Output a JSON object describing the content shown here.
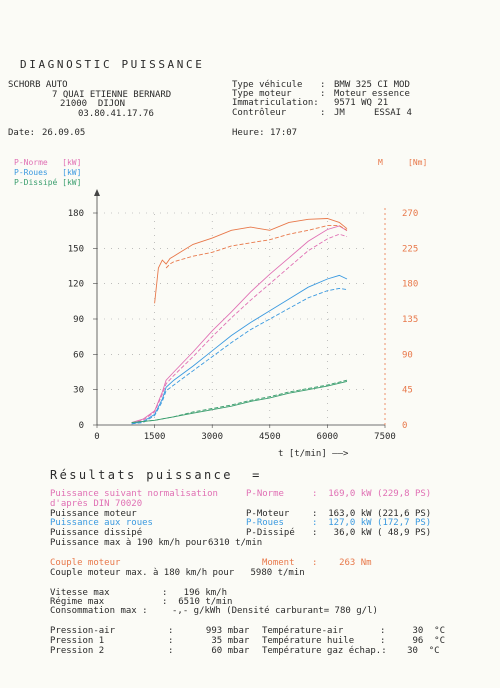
{
  "header": {
    "title": "DIAGNOSTIC PUISSANCE",
    "company": "SCHORB AUTO",
    "address1": "7 QUAI ETIENNE BERNARD",
    "address2": "21000  DIJON",
    "phone": "03.80.41.17.76",
    "labels": {
      "vehicle_type": "Type véhicule",
      "engine_type": "Type moteur",
      "registration": "Immatriculation:",
      "controller": "Contrôleur",
      "date": "Date:",
      "time": "Heure:"
    },
    "values": {
      "vehicle_type": "BMW 325 CI MOD",
      "engine_type": "Moteur essence",
      "registration": "9571 WQ 21",
      "controller": "JM",
      "test": "ESSAI 4",
      "date": "26.09.05",
      "time": "17:07"
    }
  },
  "legend": {
    "p_norme": "P-Norme   [kW]",
    "p_roues": "P-Roues   [kW]",
    "p_dissipe": "P-Dissipé [kW]",
    "m_label": "M",
    "m_unit": "[Nm]"
  },
  "chart_data": {
    "type": "line",
    "xlabel": "t [t/min] ——>",
    "x_ticks": [
      0,
      1500,
      3000,
      4500,
      6000,
      7500
    ],
    "y_left_ticks": [
      0,
      30,
      60,
      90,
      120,
      150,
      180
    ],
    "y_right_ticks": [
      0,
      45,
      90,
      135,
      180,
      225,
      270
    ],
    "xlim": [
      0,
      7500
    ],
    "ylim_left": [
      0,
      180
    ],
    "ylim_right": [
      0,
      270
    ],
    "grid": true,
    "colors": {
      "p_norme": "#e070b4",
      "p_roues": "#3b9ae0",
      "p_dissipe": "#3a9e6e",
      "torque": "#e8784a"
    },
    "series": [
      {
        "name": "P-Norme",
        "axis": "left",
        "color": "#e070b4",
        "style": "solid",
        "x": [
          900,
          1200,
          1500,
          1700,
          1800,
          2000,
          2500,
          3000,
          3500,
          4000,
          4500,
          5000,
          5500,
          6000,
          6310,
          6510
        ],
        "y": [
          2,
          5,
          12,
          28,
          38,
          45,
          62,
          80,
          96,
          113,
          128,
          142,
          156,
          166,
          169,
          165
        ]
      },
      {
        "name": "P-Norme (dashed)",
        "axis": "left",
        "color": "#e070b4",
        "style": "dashed",
        "x": [
          900,
          1200,
          1500,
          1700,
          1800,
          2000,
          2500,
          3000,
          3500,
          4000,
          4500,
          5000,
          5500,
          6000,
          6310,
          6510
        ],
        "y": [
          2,
          4,
          11,
          26,
          35,
          42,
          58,
          75,
          91,
          106,
          120,
          134,
          148,
          158,
          162,
          160
        ]
      },
      {
        "name": "P-Roues",
        "axis": "left",
        "color": "#3b9ae0",
        "style": "solid",
        "x": [
          900,
          1200,
          1500,
          1700,
          1800,
          2000,
          2500,
          3000,
          3500,
          4000,
          4500,
          5000,
          5500,
          6000,
          6310,
          6510
        ],
        "y": [
          1,
          3,
          9,
          22,
          32,
          38,
          50,
          63,
          76,
          87,
          97,
          107,
          117,
          124,
          127,
          124
        ]
      },
      {
        "name": "P-Roues (dashed)",
        "axis": "left",
        "color": "#3b9ae0",
        "style": "dashed",
        "x": [
          900,
          1200,
          1500,
          1700,
          1800,
          2000,
          2500,
          3000,
          3500,
          4000,
          4500,
          5000,
          5500,
          6000,
          6310,
          6510
        ],
        "y": [
          1,
          2,
          8,
          20,
          29,
          34,
          46,
          58,
          70,
          81,
          90,
          99,
          108,
          114,
          116,
          115
        ]
      },
      {
        "name": "P-Dissipé",
        "axis": "left",
        "color": "#3a9e6e",
        "style": "solid",
        "x": [
          900,
          1500,
          2000,
          2500,
          3000,
          3500,
          4000,
          4500,
          5000,
          5500,
          6000,
          6510
        ],
        "y": [
          2,
          4,
          7,
          10,
          13,
          16,
          20,
          23,
          27,
          30,
          33,
          37
        ]
      },
      {
        "name": "P-Dissipé (dashed)",
        "axis": "left",
        "color": "#3a9e6e",
        "style": "dashed",
        "x": [
          900,
          1500,
          2000,
          2500,
          3000,
          3500,
          4000,
          4500,
          5000,
          5500,
          6000,
          6510
        ],
        "y": [
          2,
          4,
          7,
          11,
          14,
          17,
          21,
          24,
          28,
          31,
          34,
          38
        ]
      },
      {
        "name": "Moment",
        "axis": "right",
        "color": "#e8784a",
        "style": "solid",
        "x": [
          1500,
          1600,
          1700,
          1800,
          1900,
          2000,
          2500,
          3000,
          3500,
          4000,
          4500,
          5000,
          5500,
          6000,
          6310,
          6510
        ],
        "y": [
          155,
          200,
          210,
          205,
          212,
          215,
          230,
          238,
          248,
          252,
          248,
          258,
          262,
          263,
          258,
          250
        ]
      },
      {
        "name": "Moment (dashed)",
        "axis": "right",
        "color": "#e8784a",
        "style": "dashed",
        "x": [
          1800,
          1900,
          2000,
          2500,
          3000,
          3500,
          4000,
          4500,
          5000,
          5500,
          6000,
          6310,
          6510
        ],
        "y": [
          200,
          205,
          208,
          215,
          220,
          228,
          232,
          236,
          243,
          248,
          254,
          254,
          248
        ]
      }
    ]
  },
  "results": {
    "title": "Résultats puissance  =",
    "rows": [
      {
        "label": "Puissance suivant normalisation",
        "key": "P-Norme",
        "value": ":  169,0 kW (229,8 PS)",
        "color": "pink"
      },
      {
        "label": "d'après DIN 70020",
        "key": "",
        "value": "",
        "color": "pink"
      },
      {
        "label": "Puissance moteur",
        "key": "P-Moteur",
        "value": ":  163,0 kW (221,6 PS)",
        "color": "dark"
      },
      {
        "label": "Puissance aux roues",
        "key": "P-Roues",
        "value": ":  127,0 kW (172,7 PS)",
        "color": "blue"
      },
      {
        "label": "Puissance dissipé",
        "key": "P-Dissipé",
        "value": ":   36,0 kW ( 48,9 PS)",
        "color": "dark"
      },
      {
        "label": "Puissance max à 190 km/h pour",
        "key": "6310 t/min",
        "value": "",
        "color": "dark"
      }
    ],
    "torque_label": "Couple moteur",
    "torque_key": "Moment",
    "torque_value": ":    263 Nm",
    "torque_max": "Couple moteur max. à 180 km/h pour   5980 t/min",
    "speed_label": "Vitesse max",
    "speed_value": ":   196 km/h",
    "rpm_label": "Régime max",
    "rpm_value": ":  6510 t/min",
    "consumption_label": "Consommation max :",
    "consumption_value": "-,- g/kWh (Densité carburant= 780 g/l)",
    "pressures": [
      {
        "label": "Pression-air",
        "value": ":      993 mbar",
        "label2": "Température-air",
        "value2": ":     30  °C"
      },
      {
        "label": "Pression 1",
        "value": ":       35 mbar",
        "label2": "Température huile",
        "value2": ":     96  °C"
      },
      {
        "label": "Pression 2",
        "value": ":       60 mbar",
        "label2": "Température gaz échap.:",
        "value2": "     30  °C"
      }
    ]
  }
}
